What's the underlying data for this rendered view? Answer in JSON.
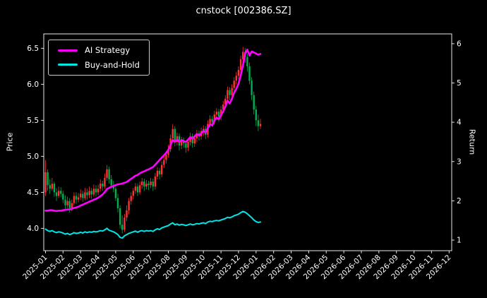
{
  "chart_data": {
    "type": "candlestick+line",
    "title": "cnstock [002386.SZ]",
    "ylabel_left": "Price",
    "ylabel_right": "Return",
    "grid": false,
    "x_tick_labels": [
      "2025-01",
      "2025-02",
      "2025-03",
      "2025-04",
      "2025-05",
      "2025-06",
      "2025-07",
      "2025-08",
      "2025-09",
      "2025-10",
      "2025-11",
      "2025-12",
      "2026-01",
      "2026-02",
      "2026-03",
      "2026-04",
      "2026-05",
      "2026-06",
      "2026-07",
      "2026-08",
      "2026-09",
      "2026-10",
      "2026-11",
      "2026-12"
    ],
    "y_ticks_left": [
      "4.0",
      "4.5",
      "5.0",
      "5.5",
      "6.0",
      "6.5"
    ],
    "y_ticks_right": [
      "1",
      "2",
      "3",
      "4",
      "5",
      "6"
    ],
    "ylim_price": [
      3.69,
      6.7
    ],
    "ylim_return": [
      0.73,
      6.25
    ],
    "xlim_months": [
      -0.1,
      23.15
    ],
    "candles_months_per_bar": 0.125,
    "colors": {
      "up": "#ff3232",
      "down": "#00b050",
      "background": "#000000",
      "text": "#ffffff",
      "spine": "#e8e8e8",
      "ai_strategy": "#ff00ff",
      "buy_and_hold": "#00e5e5"
    },
    "legend": {
      "position": "upper-left",
      "entries": [
        {
          "label": "AI Strategy",
          "color": "#ff00ff"
        },
        {
          "label": "Buy-and-Hold",
          "color": "#00e5e5"
        }
      ]
    },
    "candles": [
      [
        4.5,
        4.95,
        4.45,
        4.78
      ],
      [
        4.78,
        4.82,
        4.52,
        4.6
      ],
      [
        4.6,
        4.68,
        4.48,
        4.55
      ],
      [
        4.55,
        4.7,
        4.52,
        4.62
      ],
      [
        4.62,
        4.65,
        4.44,
        4.5
      ],
      [
        4.5,
        4.56,
        4.38,
        4.45
      ],
      [
        4.45,
        4.58,
        4.42,
        4.52
      ],
      [
        4.52,
        4.57,
        4.43,
        4.48
      ],
      [
        4.48,
        4.52,
        4.35,
        4.4
      ],
      [
        4.4,
        4.46,
        4.26,
        4.32
      ],
      [
        4.32,
        4.44,
        4.28,
        4.38
      ],
      [
        4.38,
        4.42,
        4.22,
        4.28
      ],
      [
        4.28,
        4.4,
        4.24,
        4.35
      ],
      [
        4.35,
        4.5,
        4.32,
        4.45
      ],
      [
        4.45,
        4.5,
        4.34,
        4.4
      ],
      [
        4.4,
        4.49,
        4.36,
        4.43
      ],
      [
        4.43,
        4.54,
        4.39,
        4.48
      ],
      [
        4.48,
        4.52,
        4.37,
        4.42
      ],
      [
        4.42,
        4.56,
        4.39,
        4.5
      ],
      [
        4.5,
        4.55,
        4.4,
        4.46
      ],
      [
        4.46,
        4.58,
        4.42,
        4.52
      ],
      [
        4.52,
        4.56,
        4.41,
        4.47
      ],
      [
        4.47,
        4.61,
        4.44,
        4.55
      ],
      [
        4.55,
        4.6,
        4.44,
        4.5
      ],
      [
        4.5,
        4.61,
        4.46,
        4.55
      ],
      [
        4.55,
        4.68,
        4.51,
        4.62
      ],
      [
        4.62,
        4.66,
        4.52,
        4.58
      ],
      [
        4.58,
        4.76,
        4.55,
        4.7
      ],
      [
        4.7,
        4.88,
        4.66,
        4.82
      ],
      [
        4.82,
        4.86,
        4.62,
        4.68
      ],
      [
        4.68,
        4.74,
        4.55,
        4.6
      ],
      [
        4.6,
        4.66,
        4.5,
        4.55
      ],
      [
        4.55,
        4.6,
        4.38,
        4.42
      ],
      [
        4.42,
        4.48,
        4.22,
        4.28
      ],
      [
        4.28,
        4.32,
        4.0,
        4.05
      ],
      [
        4.05,
        4.18,
        3.93,
        3.98
      ],
      [
        3.98,
        4.2,
        3.95,
        4.15
      ],
      [
        4.15,
        4.32,
        4.1,
        4.25
      ],
      [
        4.25,
        4.42,
        4.2,
        4.38
      ],
      [
        4.38,
        4.5,
        4.33,
        4.45
      ],
      [
        4.45,
        4.56,
        4.4,
        4.52
      ],
      [
        4.52,
        4.63,
        4.48,
        4.58
      ],
      [
        4.58,
        4.62,
        4.45,
        4.5
      ],
      [
        4.5,
        4.65,
        4.47,
        4.6
      ],
      [
        4.6,
        4.7,
        4.55,
        4.65
      ],
      [
        4.65,
        4.69,
        4.52,
        4.58
      ],
      [
        4.58,
        4.67,
        4.54,
        4.62
      ],
      [
        4.62,
        4.66,
        4.53,
        4.6
      ],
      [
        4.6,
        4.7,
        4.56,
        4.65
      ],
      [
        4.65,
        4.69,
        4.52,
        4.58
      ],
      [
        4.58,
        4.77,
        4.54,
        4.72
      ],
      [
        4.72,
        4.85,
        4.68,
        4.8
      ],
      [
        4.8,
        4.84,
        4.68,
        4.75
      ],
      [
        4.75,
        4.93,
        4.71,
        4.88
      ],
      [
        4.88,
        5.0,
        4.84,
        4.95
      ],
      [
        4.95,
        5.07,
        4.9,
        5.02
      ],
      [
        5.02,
        5.16,
        4.98,
        5.1
      ],
      [
        5.1,
        5.3,
        5.06,
        5.25
      ],
      [
        5.25,
        5.45,
        5.2,
        5.38
      ],
      [
        5.38,
        5.42,
        5.14,
        5.2
      ],
      [
        5.2,
        5.33,
        5.15,
        5.28
      ],
      [
        5.28,
        5.32,
        5.08,
        5.15
      ],
      [
        5.15,
        5.27,
        5.1,
        5.22
      ],
      [
        5.22,
        5.26,
        5.12,
        5.18
      ],
      [
        5.18,
        5.22,
        5.05,
        5.12
      ],
      [
        5.12,
        5.25,
        5.07,
        5.2
      ],
      [
        5.2,
        5.33,
        5.15,
        5.28
      ],
      [
        5.28,
        5.32,
        5.12,
        5.18
      ],
      [
        5.18,
        5.3,
        5.13,
        5.25
      ],
      [
        5.25,
        5.37,
        5.2,
        5.32
      ],
      [
        5.32,
        5.36,
        5.22,
        5.28
      ],
      [
        5.28,
        5.4,
        5.23,
        5.35
      ],
      [
        5.35,
        5.43,
        5.28,
        5.38
      ],
      [
        5.38,
        5.42,
        5.24,
        5.3
      ],
      [
        5.3,
        5.5,
        5.26,
        5.45
      ],
      [
        5.45,
        5.57,
        5.4,
        5.52
      ],
      [
        5.52,
        5.56,
        5.42,
        5.48
      ],
      [
        5.48,
        5.63,
        5.44,
        5.58
      ],
      [
        5.58,
        5.67,
        5.52,
        5.62
      ],
      [
        5.62,
        5.66,
        5.48,
        5.55
      ],
      [
        5.55,
        5.7,
        5.5,
        5.65
      ],
      [
        5.65,
        5.77,
        5.6,
        5.72
      ],
      [
        5.72,
        5.85,
        5.67,
        5.8
      ],
      [
        5.8,
        5.97,
        5.75,
        5.92
      ],
      [
        5.92,
        5.96,
        5.78,
        5.85
      ],
      [
        5.85,
        6.0,
        5.8,
        5.95
      ],
      [
        5.95,
        6.1,
        5.9,
        6.05
      ],
      [
        6.05,
        6.17,
        6.0,
        6.12
      ],
      [
        6.12,
        6.25,
        6.07,
        6.2
      ],
      [
        6.2,
        6.4,
        6.15,
        6.35
      ],
      [
        6.35,
        6.52,
        6.3,
        6.45
      ],
      [
        6.45,
        6.5,
        6.3,
        6.38
      ],
      [
        6.38,
        6.42,
        6.18,
        6.25
      ],
      [
        6.25,
        6.3,
        6.0,
        6.05
      ],
      [
        6.05,
        6.1,
        5.78,
        5.85
      ],
      [
        5.85,
        5.9,
        5.58,
        5.65
      ],
      [
        5.65,
        5.7,
        5.42,
        5.5
      ],
      [
        5.5,
        5.58,
        5.35,
        5.42
      ],
      [
        5.42,
        5.52,
        5.38,
        5.45
      ]
    ],
    "series": [
      {
        "name": "AI Strategy",
        "axis": "return",
        "color": "#ff00ff",
        "values": [
          1.75,
          1.75,
          1.76,
          1.76,
          1.75,
          1.74,
          1.75,
          1.75,
          1.76,
          1.77,
          1.78,
          1.78,
          1.8,
          1.82,
          1.83,
          1.85,
          1.88,
          1.9,
          1.93,
          1.95,
          1.98,
          2.0,
          2.03,
          2.05,
          2.08,
          2.12,
          2.16,
          2.22,
          2.3,
          2.33,
          2.36,
          2.38,
          2.4,
          2.42,
          2.43,
          2.44,
          2.46,
          2.48,
          2.52,
          2.56,
          2.6,
          2.64,
          2.66,
          2.7,
          2.73,
          2.75,
          2.78,
          2.8,
          2.83,
          2.86,
          2.92,
          2.98,
          3.04,
          3.1,
          3.16,
          3.22,
          3.3,
          3.42,
          3.55,
          3.5,
          3.56,
          3.5,
          3.55,
          3.52,
          3.5,
          3.56,
          3.62,
          3.58,
          3.64,
          3.7,
          3.66,
          3.72,
          3.78,
          3.74,
          3.85,
          3.95,
          3.92,
          4.05,
          4.12,
          4.08,
          4.18,
          4.28,
          4.4,
          4.55,
          4.48,
          4.6,
          4.75,
          4.85,
          4.98,
          5.2,
          5.45,
          5.75,
          5.85,
          5.7,
          5.8,
          5.78,
          5.75,
          5.72,
          5.74
        ]
      },
      {
        "name": "Buy-and-Hold",
        "axis": "return",
        "color": "#00e5e5",
        "values": [
          1.28,
          1.24,
          1.22,
          1.24,
          1.21,
          1.19,
          1.21,
          1.2,
          1.18,
          1.15,
          1.17,
          1.14,
          1.16,
          1.19,
          1.17,
          1.18,
          1.2,
          1.18,
          1.21,
          1.19,
          1.21,
          1.2,
          1.22,
          1.21,
          1.22,
          1.24,
          1.23,
          1.26,
          1.3,
          1.25,
          1.23,
          1.21,
          1.18,
          1.14,
          1.07,
          1.05,
          1.11,
          1.14,
          1.17,
          1.19,
          1.21,
          1.23,
          1.2,
          1.23,
          1.24,
          1.22,
          1.24,
          1.23,
          1.24,
          1.22,
          1.26,
          1.29,
          1.27,
          1.31,
          1.33,
          1.35,
          1.37,
          1.41,
          1.44,
          1.39,
          1.41,
          1.38,
          1.4,
          1.39,
          1.37,
          1.39,
          1.41,
          1.39,
          1.4,
          1.42,
          1.41,
          1.43,
          1.44,
          1.42,
          1.46,
          1.48,
          1.47,
          1.49,
          1.5,
          1.49,
          1.51,
          1.53,
          1.55,
          1.58,
          1.57,
          1.59,
          1.62,
          1.64,
          1.66,
          1.7,
          1.73,
          1.71,
          1.67,
          1.62,
          1.57,
          1.51,
          1.47,
          1.45,
          1.46
        ]
      }
    ]
  }
}
